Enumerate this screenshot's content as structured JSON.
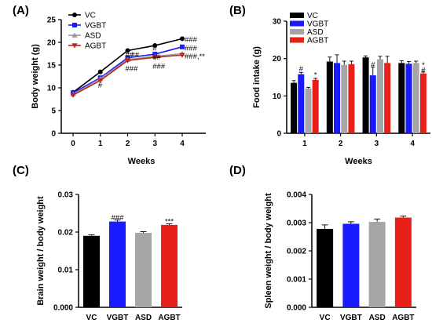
{
  "chart_data": [
    {
      "panel": "(A)",
      "type": "line",
      "xlabel": "Weeks",
      "ylabel": "Body weight (g)",
      "x": [
        0,
        1,
        2,
        3,
        4
      ],
      "ylim": [
        0,
        25
      ],
      "yticks": [
        0,
        5,
        10,
        15,
        20,
        25
      ],
      "legend_position": "top-left",
      "series": [
        {
          "name": "VC",
          "color": "#000000",
          "marker": "circle",
          "values": [
            9.0,
            13.5,
            18.2,
            19.3,
            20.8
          ],
          "errors": [
            0.3,
            0.3,
            0.3,
            0.3,
            0.3
          ]
        },
        {
          "name": "VGBT",
          "color": "#1a1aff",
          "marker": "square",
          "values": [
            8.9,
            12.2,
            16.6,
            17.4,
            19.0
          ],
          "errors": [
            0.3,
            0.3,
            0.3,
            0.3,
            0.3
          ]
        },
        {
          "name": "ASD",
          "color": "#999999",
          "marker": "triangle",
          "values": [
            8.6,
            12.0,
            16.2,
            16.9,
            17.5
          ],
          "errors": [
            0.3,
            0.3,
            0.3,
            0.3,
            0.3
          ]
        },
        {
          "name": "AGBT",
          "color": "#b5291e",
          "marker": "tri-down",
          "values": [
            8.4,
            11.6,
            16.0,
            16.7,
            17.2
          ],
          "errors": [
            0.3,
            0.3,
            0.3,
            0.3,
            0.3
          ]
        }
      ],
      "annotations": [
        {
          "text": "#",
          "x": 1,
          "y": 10.5
        },
        {
          "text": "##",
          "x": 2,
          "y": 17.2
        },
        {
          "text": "###",
          "x": 2,
          "y": 14.2
        },
        {
          "text": "##",
          "x": 2.2,
          "y": 17.2
        },
        {
          "text": "#",
          "x": 3,
          "y": 18.7
        },
        {
          "text": "##",
          "x": 3,
          "y": 16.7
        },
        {
          "text": "###",
          "x": 3,
          "y": 14.7
        },
        {
          "text": "###",
          "x": 4,
          "y": 20.6
        },
        {
          "text": "###",
          "x": 4,
          "y": 18.7
        },
        {
          "text": "###,**",
          "x": 4,
          "y": 16.9
        }
      ]
    },
    {
      "panel": "(B)",
      "type": "bar",
      "xlabel": "Weeks",
      "ylabel": "Food intake (g)",
      "categories": [
        "1",
        "2",
        "3",
        "4"
      ],
      "ylim": [
        0,
        30
      ],
      "yticks": [
        0,
        10,
        20,
        30
      ],
      "legend_position": "top-left",
      "series": [
        {
          "name": "VC",
          "color": "#000000",
          "values": [
            13.5,
            19.2,
            20.3,
            18.8
          ],
          "errors": [
            0.6,
            1.2,
            0.4,
            0.6
          ]
        },
        {
          "name": "VGBT",
          "color": "#1a1aff",
          "values": [
            15.8,
            18.8,
            15.5,
            18.6
          ],
          "errors": [
            0.5,
            2.2,
            2.2,
            0.6
          ]
        },
        {
          "name": "ASD",
          "color": "#a6a6a6",
          "values": [
            12.0,
            18.3,
            19.8,
            18.8
          ],
          "errors": [
            0.3,
            1.0,
            0.8,
            0.5
          ]
        },
        {
          "name": "AGBT",
          "color": "#e8201a",
          "values": [
            14.3,
            18.5,
            18.8,
            16.0
          ],
          "errors": [
            0.4,
            0.8,
            1.8,
            0.4
          ]
        }
      ],
      "annotations": [
        {
          "text": "#",
          "category": "1",
          "series": "VGBT",
          "y": 17.2
        },
        {
          "text": "*",
          "category": "1",
          "series": "AGBT",
          "y": 15.6
        },
        {
          "text": "#",
          "category": "3",
          "series": "VGBT",
          "y": 18.4
        },
        {
          "text": "*",
          "category": "4",
          "series": "AGBT",
          "y": 18.2
        },
        {
          "text": "#",
          "category": "4",
          "series": "AGBT",
          "y": 16.9
        }
      ]
    },
    {
      "panel": "(C)",
      "type": "bar",
      "ylabel": "Brain weight / body weight",
      "categories": [
        "VC",
        "VGBT",
        "ASD",
        "AGBT"
      ],
      "colors": [
        "#000000",
        "#1a1aff",
        "#a6a6a6",
        "#e8201a"
      ],
      "values": [
        0.019,
        0.0228,
        0.0198,
        0.0219
      ],
      "errors": [
        0.0003,
        0.0004,
        0.0003,
        0.0003
      ],
      "ylim": [
        0,
        0.03
      ],
      "yticks": [
        "0.000",
        "0.01",
        "0.02",
        "0.03"
      ],
      "annotations": [
        {
          "text": "###",
          "category": "VGBT",
          "y": 0.0236
        },
        {
          "text": "***",
          "category": "AGBT",
          "y": 0.0226
        }
      ]
    },
    {
      "panel": "(D)",
      "type": "bar",
      "ylabel": "Spleen weight / body weight",
      "categories": [
        "VC",
        "VGBT",
        "ASD",
        "AGBT"
      ],
      "colors": [
        "#000000",
        "#1a1aff",
        "#a6a6a6",
        "#e8201a"
      ],
      "values": [
        0.00278,
        0.00296,
        0.00303,
        0.00318
      ],
      "errors": [
        0.00014,
        7e-05,
        0.0001,
        5e-05
      ],
      "ylim": [
        0,
        0.004
      ],
      "yticks": [
        "0.000",
        "0.001",
        "0.002",
        "0.003",
        "0.004"
      ],
      "annotations": []
    }
  ]
}
